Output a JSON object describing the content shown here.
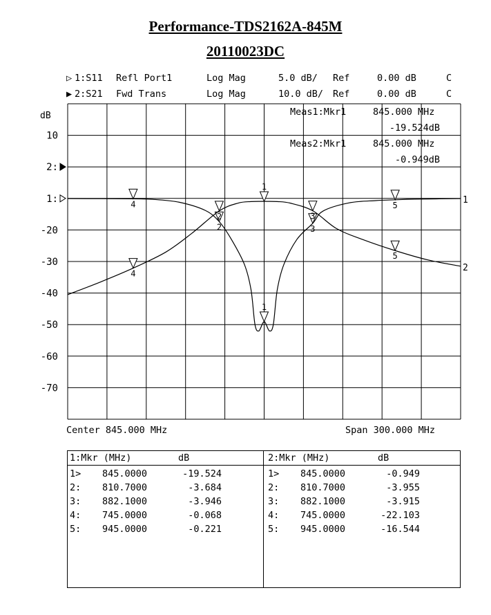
{
  "title": "Performance-TDS2162A-845M",
  "subtitle": "20110023DC",
  "trace_headers": [
    {
      "marker": "▷",
      "id": "1:S11",
      "name": "Refl Port1",
      "format": "Log Mag",
      "scale": "5.0 dB/",
      "ref": "Ref",
      "ref_val": "0.00 dB",
      "flag": "C"
    },
    {
      "marker": "▶",
      "id": "2:S21",
      "name": "Fwd Trans",
      "format": "Log Mag",
      "scale": "10.0 dB/",
      "ref": "Ref",
      "ref_val": "0.00 dB",
      "flag": "C"
    }
  ],
  "ylabel": "dB",
  "meas": [
    {
      "label": "Meas1:Mkr1",
      "freq": "845.000 MHz",
      "value": "-19.524dB"
    },
    {
      "label": "Meas2:Mkr1",
      "freq": "845.000 MHz",
      "value": "-0.949dB"
    }
  ],
  "footer": {
    "center": "Center 845.000 MHz",
    "span": "Span 300.000 MHz"
  },
  "chart_data": {
    "type": "line",
    "x_unit": "MHz",
    "xlim": [
      695,
      995
    ],
    "grid": true,
    "ytick_labels": [
      "10",
      "2:",
      "1:",
      "-20",
      "-30",
      "-40",
      "-50",
      "-60",
      "-70"
    ],
    "series": [
      {
        "name": "1",
        "param": "S11",
        "scale_db_per_div": 5,
        "ref_db": 0,
        "x": [
          695,
          745,
          760,
          780,
          800,
          810.7,
          820,
          830,
          835,
          838,
          841,
          845,
          849,
          852,
          855,
          860,
          870,
          882.1,
          890,
          910,
          930,
          945,
          960,
          995
        ],
        "y": [
          -0.02,
          -0.068,
          -0.15,
          -0.6,
          -1.9,
          -3.684,
          -6.5,
          -10.5,
          -14.5,
          -20,
          -21,
          -19.524,
          -21,
          -20,
          -14.5,
          -10.5,
          -6.5,
          -3.946,
          -2.0,
          -0.7,
          -0.35,
          -0.221,
          -0.12,
          -0.03
        ]
      },
      {
        "name": "2",
        "param": "S21",
        "scale_db_per_div": 10,
        "ref_db": 0,
        "x": [
          695,
          720,
          745,
          770,
          790,
          810.7,
          825,
          835,
          845,
          855,
          865,
          882.1,
          900,
          920,
          945,
          970,
          995
        ],
        "y": [
          -30.5,
          -26.5,
          -22.103,
          -17,
          -11,
          -3.955,
          -1.5,
          -1.0,
          -0.949,
          -1.0,
          -1.5,
          -3.915,
          -9.5,
          -13,
          -16.544,
          -19.5,
          -21.5
        ]
      }
    ],
    "markers": [
      {
        "n": "1",
        "x": 845.0
      },
      {
        "n": "2",
        "x": 810.7
      },
      {
        "n": "3",
        "x": 882.1
      },
      {
        "n": "4",
        "x": 745.0
      },
      {
        "n": "5",
        "x": 945.0
      }
    ]
  },
  "table": {
    "left": {
      "header_mkr": "1:Mkr (MHz)",
      "header_unit": "dB",
      "rows": [
        {
          "n": "1>",
          "f": "845.0000",
          "v": "-19.524"
        },
        {
          "n": "2:",
          "f": "810.7000",
          "v": "-3.684"
        },
        {
          "n": "3:",
          "f": "882.1000",
          "v": "-3.946"
        },
        {
          "n": "4:",
          "f": "745.0000",
          "v": "-0.068"
        },
        {
          "n": "5:",
          "f": "945.0000",
          "v": "-0.221"
        }
      ]
    },
    "right": {
      "header_mkr": "2:Mkr (MHz)",
      "header_unit": "dB",
      "rows": [
        {
          "n": "1>",
          "f": "845.0000",
          "v": "-0.949"
        },
        {
          "n": "2:",
          "f": "810.7000",
          "v": "-3.955"
        },
        {
          "n": "3:",
          "f": "882.1000",
          "v": "-3.915"
        },
        {
          "n": "4:",
          "f": "745.0000",
          "v": "-22.103"
        },
        {
          "n": "5:",
          "f": "945.0000",
          "v": "-16.544"
        }
      ]
    }
  }
}
